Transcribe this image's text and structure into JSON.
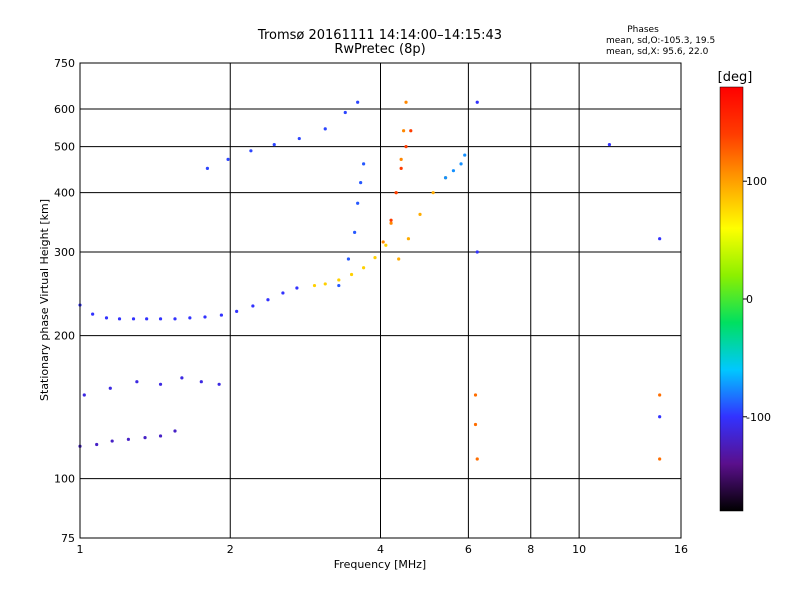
{
  "chart_data": {
    "type": "scatter",
    "title": "Tromsø 20161111 14:14:00–14:15:43",
    "subtitle": "RwPretec (8p)",
    "xlabel": "Frequency [MHz]",
    "ylabel": "Stationary phase Virtual Height [km]",
    "x_scale": "log",
    "y_scale": "log",
    "xlim": [
      1,
      16
    ],
    "ylim": [
      75,
      750
    ],
    "x_ticks": [
      1,
      2,
      4,
      6,
      8,
      10,
      16
    ],
    "y_ticks": [
      75,
      100,
      200,
      300,
      400,
      500,
      600,
      750
    ],
    "x_gridlines": [
      2,
      4,
      6,
      8,
      10
    ],
    "y_gridlines": [
      100,
      200,
      300,
      400,
      500,
      600
    ],
    "phase_info": {
      "heading": "Phases",
      "line1": "mean, sd,O:-105.3, 19.5",
      "line2": "mean, sd,X:  95.6, 22.0"
    },
    "colorbar": {
      "label": "[deg]",
      "range": [
        -180,
        180
      ],
      "ticks": [
        100,
        0,
        -100
      ],
      "colors": [
        "#000000",
        "#5a0f8c",
        "#3232ff",
        "#00c8ff",
        "#00e060",
        "#8cf000",
        "#ffff00",
        "#ffa000",
        "#ff3c00",
        "#ff0000"
      ]
    },
    "series": [
      {
        "phase": -100,
        "x": [
          1.0,
          1.06,
          1.13,
          1.2,
          1.28,
          1.36,
          1.45,
          1.55,
          1.66,
          1.78,
          1.92,
          2.06,
          2.22,
          2.38,
          2.55,
          2.72
        ],
        "y": [
          232,
          222,
          218,
          217,
          217,
          217,
          217,
          217,
          218,
          219,
          221,
          225,
          231,
          238,
          246,
          252
        ]
      },
      {
        "phase": -120,
        "x": [
          1.0,
          1.08,
          1.16,
          1.25,
          1.35,
          1.45,
          1.55
        ],
        "y": [
          117,
          118,
          120,
          121,
          122,
          123,
          126
        ]
      },
      {
        "phase": -110,
        "x": [
          1.02,
          1.15,
          1.3,
          1.45,
          1.6,
          1.75,
          1.9
        ],
        "y": [
          150,
          155,
          160,
          158,
          163,
          160,
          158
        ]
      },
      {
        "phase": -95,
        "x": [
          1.8,
          1.98,
          2.2,
          2.45,
          2.75,
          3.1,
          3.4,
          3.6
        ],
        "y": [
          450,
          470,
          490,
          505,
          520,
          545,
          590,
          620
        ]
      },
      {
        "phase": -90,
        "x": [
          3.3,
          3.45,
          3.55,
          3.6,
          3.65,
          3.7
        ],
        "y": [
          255,
          290,
          330,
          380,
          420,
          460
        ]
      },
      {
        "phase": 80,
        "x": [
          2.95,
          3.1,
          3.3,
          3.5,
          3.7,
          3.9,
          4.1
        ],
        "y": [
          255,
          257,
          262,
          269,
          278,
          292,
          310
        ]
      },
      {
        "phase": 110,
        "x": [
          4.05,
          4.2,
          4.3,
          4.4,
          4.45,
          4.5
        ],
        "y": [
          315,
          345,
          400,
          470,
          540,
          620
        ]
      },
      {
        "phase": 95,
        "x": [
          4.35,
          4.55,
          4.8,
          5.1,
          5.4
        ],
        "y": [
          290,
          320,
          360,
          400,
          430
        ]
      },
      {
        "phase": 140,
        "x": [
          4.2,
          4.3,
          4.4,
          4.5,
          4.6
        ],
        "y": [
          350,
          400,
          450,
          500,
          540
        ]
      },
      {
        "phase": -75,
        "x": [
          5.4,
          5.6,
          5.8,
          5.9
        ],
        "y": [
          430,
          445,
          460,
          480
        ]
      },
      {
        "phase": 120,
        "x": [
          6.2,
          6.2,
          6.25,
          14.5,
          14.5
        ],
        "y": [
          150,
          130,
          110,
          150,
          110
        ]
      },
      {
        "phase": -100,
        "x": [
          6.25,
          6.25,
          14.5,
          14.5,
          11.5
        ],
        "y": [
          620,
          300,
          320,
          135,
          505
        ]
      }
    ]
  }
}
